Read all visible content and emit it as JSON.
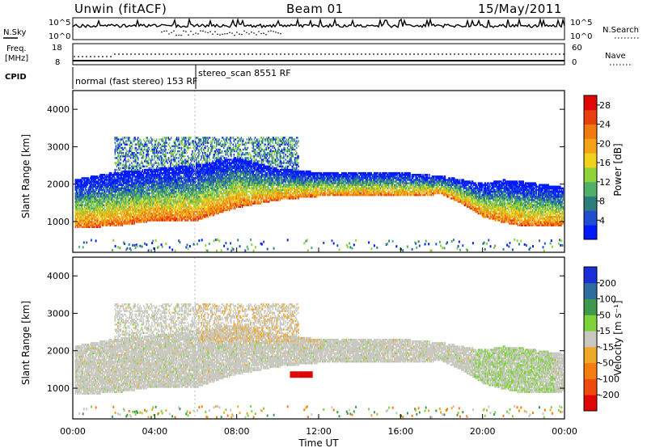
{
  "header": {
    "left_title": "Unwin (fitACF)",
    "center_title": "Beam 01",
    "date": "15/May/2011"
  },
  "summary_panels": {
    "nsky": {
      "label": "N.Sky",
      "tick_top": "10^5",
      "tick_bottom": "10^0"
    },
    "nsearch": {
      "label": "N.Search",
      "tick_top": "10^5",
      "tick_bottom": "10^0"
    },
    "freq": {
      "label_line1": "Freq.",
      "label_line2": "[MHz]",
      "tick_top": "18",
      "tick_bottom": "8"
    },
    "nave": {
      "label": "Nave",
      "tick_top": "60",
      "tick_bottom": "0"
    },
    "cpid": {
      "label": "CPID",
      "mode1": "normal (fast stereo) 153 RF",
      "mode2": "stereo_scan 8551 RF",
      "switch_time_hours": 6.0
    }
  },
  "chart_data": [
    {
      "type": "heatmap",
      "name": "power-panel",
      "xlabel": "",
      "ylabel": "Slant Range [km]",
      "xlim_hours": [
        0,
        24
      ],
      "ylim_km": [
        180,
        4500
      ],
      "yticks": [
        "1000",
        "2000",
        "3000",
        "4000"
      ],
      "yticks_values": [
        1000,
        2000,
        3000,
        4000
      ],
      "colorbar": {
        "label": "Power [dB]",
        "ticks": [
          "4",
          "8",
          "12",
          "16",
          "20",
          "24",
          "28"
        ],
        "range": [
          0,
          30
        ],
        "colors": [
          "#0019ff",
          "#1f4fcf",
          "#2e7d7d",
          "#4fb06a",
          "#8fd23a",
          "#f0d21c",
          "#f5a316",
          "#f07a10",
          "#e8400c",
          "#e10606"
        ]
      },
      "scatter_bands": [
        {
          "band": "main-echo-lower-edge",
          "times_hours": [
            0,
            2,
            4,
            6,
            8,
            10,
            12,
            14,
            16,
            18,
            19,
            20,
            21,
            22,
            24
          ],
          "range_km": [
            950,
            1000,
            1150,
            1150,
            1500,
            1700,
            1800,
            1800,
            1800,
            1850,
            1600,
            1250,
            1100,
            1000,
            1000
          ]
        },
        {
          "band": "main-echo-upper-edge",
          "times_hours": [
            0,
            2,
            4,
            6,
            8,
            10,
            12,
            14,
            16,
            18,
            19,
            20,
            21,
            22,
            24
          ],
          "range_km": [
            2100,
            2300,
            2400,
            2500,
            2700,
            2400,
            2300,
            2300,
            2300,
            2200,
            2100,
            2000,
            2100,
            2050,
            1900
          ]
        }
      ]
    },
    {
      "type": "heatmap",
      "name": "velocity-panel",
      "xlabel": "Time UT",
      "ylabel": "Slant Range [km]",
      "xticks": [
        "00:00",
        "04:00",
        "08:00",
        "12:00",
        "16:00",
        "20:00",
        "00:00"
      ],
      "xticks_values": [
        0,
        4,
        8,
        12,
        16,
        20,
        24
      ],
      "xlim_hours": [
        0,
        24
      ],
      "ylim_km": [
        180,
        4500
      ],
      "yticks": [
        "1000",
        "2000",
        "3000",
        "4000"
      ],
      "yticks_values": [
        1000,
        2000,
        3000,
        4000
      ],
      "colorbar": {
        "label": "Velocity [m s⁻¹]",
        "ticks": [
          "200",
          "100",
          "50",
          "15",
          "-15",
          "-50",
          "-100",
          "-200"
        ],
        "colors": [
          "#1a2fd8",
          "#2e6e9e",
          "#3d9a4a",
          "#7ed23a",
          "#c8c8c0",
          "#f0a828",
          "#f57c10",
          "#ee4a0e",
          "#e10606"
        ]
      }
    }
  ]
}
